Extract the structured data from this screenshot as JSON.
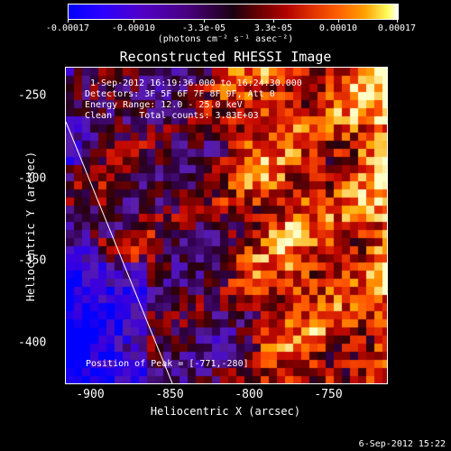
{
  "colorbar": {
    "tick_labels": [
      "-0.00017",
      "-0.00010",
      "-3.3e-05",
      "3.3e-05",
      "0.00010",
      "0.00017"
    ],
    "units": "(photons cm⁻² s⁻¹ asec⁻²)"
  },
  "title": "Reconstructed RHESSI Image",
  "info": {
    "time": "1-Sep-2012 16:19:36.000 to 16:24:30.000",
    "detectors": "Detectors: 3F 5F 6F 7F 8F 9F, Att 0",
    "energy": "Energy Range: 12.0 - 25.0 keV",
    "clean": "Clean     Total counts: 3.83E+03"
  },
  "peak": "Position of Peak = [-771,-280]",
  "axes": {
    "xlabel": "Heliocentric X (arcsec)",
    "ylabel": "Heliocentric Y (arcsec)",
    "xticks": [
      "-900",
      "-850",
      "-800",
      "-750"
    ],
    "yticks": [
      "-250",
      "-300",
      "-350",
      "-400"
    ]
  },
  "footer_date": "6-Sep-2012 15:22"
}
